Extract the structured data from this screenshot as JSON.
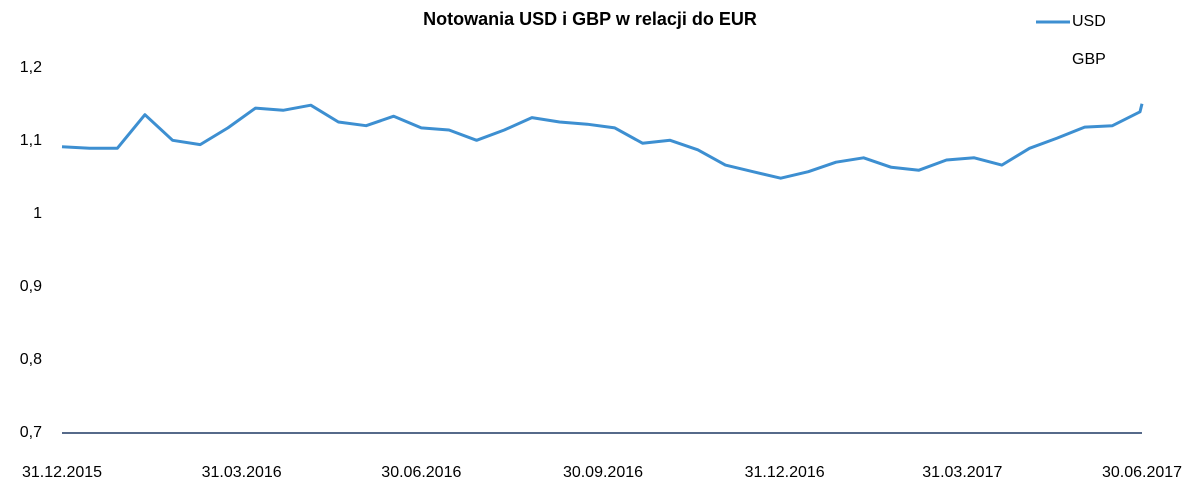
{
  "chart_data": {
    "type": "line",
    "title": "Notowania USD i GBP w relacji do EUR",
    "x": [
      "31.12.2015",
      "14.01.2016",
      "28.01.2016",
      "11.02.2016",
      "25.02.2016",
      "10.03.2016",
      "24.03.2016",
      "07.04.2016",
      "21.04.2016",
      "05.05.2016",
      "19.05.2016",
      "02.06.2016",
      "16.06.2016",
      "30.06.2016",
      "14.07.2016",
      "28.07.2016",
      "11.08.2016",
      "25.08.2016",
      "08.09.2016",
      "22.09.2016",
      "06.10.2016",
      "20.10.2016",
      "03.11.2016",
      "17.11.2016",
      "01.12.2016",
      "15.12.2016",
      "29.12.2016",
      "12.01.2017",
      "26.01.2017",
      "09.02.2017",
      "23.02.2017",
      "09.03.2017",
      "23.03.2017",
      "06.04.2017",
      "20.04.2017",
      "04.05.2017",
      "18.05.2017",
      "01.06.2017",
      "15.06.2017",
      "29.06.2017",
      "30.06.2017"
    ],
    "series": [
      {
        "name": "USD",
        "color": "#3d8fd1",
        "values": [
          1.092,
          1.09,
          1.09,
          1.136,
          1.101,
          1.095,
          1.118,
          1.145,
          1.142,
          1.149,
          1.126,
          1.121,
          1.134,
          1.118,
          1.115,
          1.101,
          1.115,
          1.132,
          1.126,
          1.123,
          1.118,
          1.097,
          1.101,
          1.088,
          1.067,
          1.058,
          1.049,
          1.058,
          1.071,
          1.077,
          1.064,
          1.06,
          1.074,
          1.077,
          1.067,
          1.09,
          1.104,
          1.119,
          1.121,
          1.14,
          1.151
        ]
      },
      {
        "name": "GBP",
        "values": [
          null,
          null,
          null,
          null,
          null,
          null,
          null,
          null,
          null,
          null,
          null,
          null,
          null,
          null,
          null,
          null,
          null,
          null,
          null,
          null,
          null,
          null,
          null,
          null,
          null,
          null,
          null,
          null,
          null,
          null,
          null,
          null,
          null,
          null,
          null,
          null,
          null,
          null,
          null,
          null,
          null
        ]
      }
    ],
    "xlim": [
      "31.12.2015",
      "30.06.2017"
    ],
    "xticks": [
      "31.12.2015",
      "31.03.2016",
      "30.06.2016",
      "30.09.2016",
      "31.12.2016",
      "31.03.2017",
      "30.06.2017"
    ],
    "ylim": [
      0.7,
      1.2
    ],
    "yticks": [
      {
        "value": 0.7,
        "label": "0,7"
      },
      {
        "value": 0.8,
        "label": "0,8"
      },
      {
        "value": 0.9,
        "label": "0,9"
      },
      1,
      {
        "value": 1.1,
        "label": "1,1"
      },
      {
        "value": 1.2,
        "label": "1,2"
      }
    ],
    "grid": false,
    "legend": "upper right",
    "axis_color": "#1f3864"
  }
}
